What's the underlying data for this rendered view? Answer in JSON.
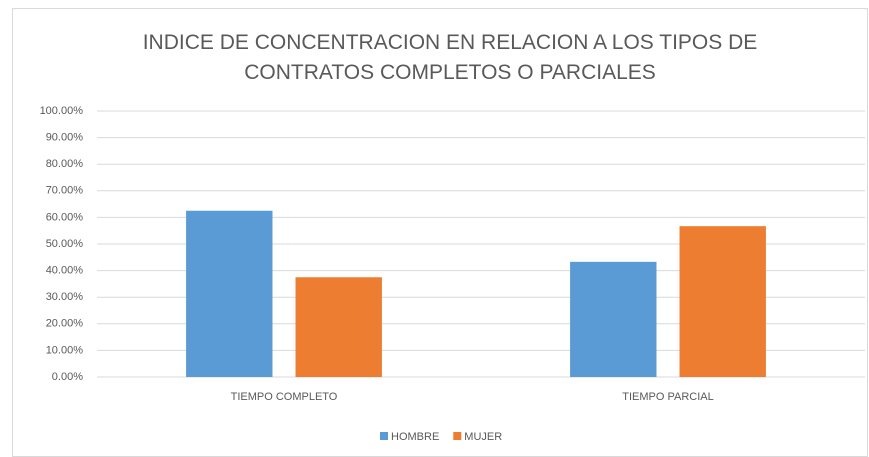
{
  "chart_data": {
    "type": "bar",
    "title": "INDICE DE CONCENTRACION EN RELACION A LOS TIPOS DE CONTRATOS COMPLETOS O PARCIALES",
    "categories": [
      "TIEMPO COMPLETO",
      "TIEMPO PARCIAL"
    ],
    "series": [
      {
        "name": "HOMBRE",
        "color": "#5b9bd5",
        "values": [
          62.5,
          43.3
        ]
      },
      {
        "name": "MUJER",
        "color": "#ed7d31",
        "values": [
          37.5,
          56.7
        ]
      }
    ],
    "ylim": [
      0,
      100
    ],
    "yticks": [
      {
        "value": 0,
        "label": "0.00%"
      },
      {
        "value": 10,
        "label": "10.00%"
      },
      {
        "value": 20,
        "label": "20.00%"
      },
      {
        "value": 30,
        "label": "30.00%"
      },
      {
        "value": 40,
        "label": "40.00%"
      },
      {
        "value": 50,
        "label": "50.00%"
      },
      {
        "value": 60,
        "label": "60.00%"
      },
      {
        "value": 70,
        "label": "70.00%"
      },
      {
        "value": 80,
        "label": "80.00%"
      },
      {
        "value": 90,
        "label": "90.00%"
      },
      {
        "value": 100,
        "label": "100.00%"
      }
    ],
    "grid": true,
    "legend": "bottom"
  }
}
